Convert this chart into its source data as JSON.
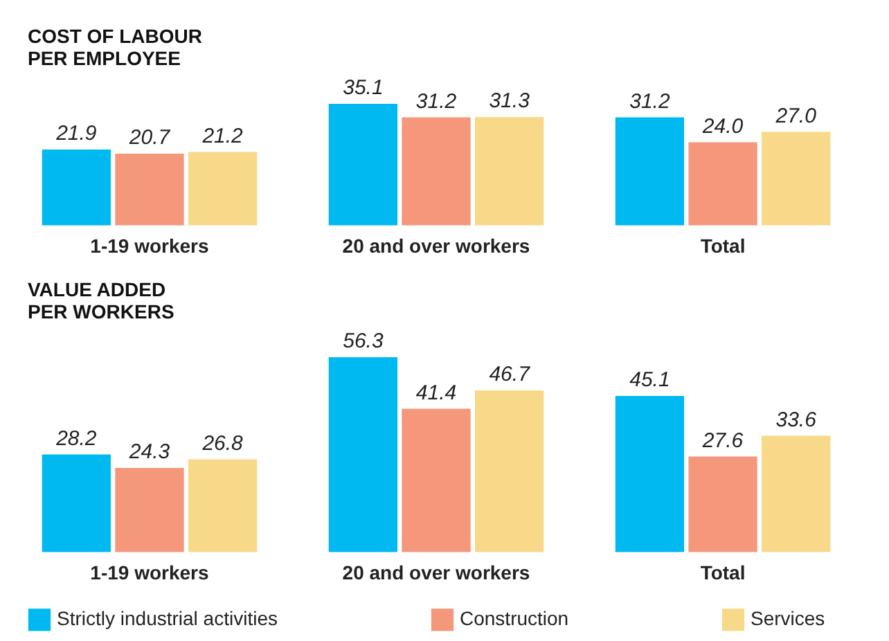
{
  "chart_data": [
    {
      "type": "bar",
      "title": "COST OF LABOUR\nPER EMPLOYEE",
      "categories": [
        "1-19 workers",
        "20 and over workers",
        "Total"
      ],
      "legend": "bottom",
      "series": [
        {
          "name": "Strictly industrial activities",
          "color": "#00b9f1",
          "values": [
            21.9,
            35.1,
            31.2
          ],
          "value_labels": [
            "21.9",
            "35.1",
            "31.2"
          ]
        },
        {
          "name": "Construction",
          "color": "#f4977a",
          "values": [
            20.7,
            31.2,
            24.0
          ],
          "value_labels": [
            "20.7",
            "31.2",
            "24.0"
          ]
        },
        {
          "name": "Services",
          "color": "#f8d98a",
          "values": [
            21.2,
            31.3,
            27.0
          ],
          "value_labels": [
            "21.2",
            "31.3",
            "27.0"
          ]
        }
      ]
    },
    {
      "type": "bar",
      "title": "VALUE ADDED\nPER WORKERS",
      "categories": [
        "1-19 workers",
        "20 and over workers",
        "Total"
      ],
      "legend": "bottom",
      "series": [
        {
          "name": "Strictly industrial activities",
          "color": "#00b9f1",
          "values": [
            28.2,
            56.3,
            45.1
          ],
          "value_labels": [
            "28.2",
            "56.3",
            "45.1"
          ]
        },
        {
          "name": "Construction",
          "color": "#f4977a",
          "values": [
            24.3,
            41.4,
            27.6
          ],
          "value_labels": [
            "24.3",
            "41.4",
            "27.6"
          ]
        },
        {
          "name": "Services",
          "color": "#f8d98a",
          "values": [
            26.8,
            46.7,
            33.6
          ],
          "value_labels": [
            "26.8",
            "46.7",
            "33.6"
          ]
        }
      ]
    }
  ]
}
